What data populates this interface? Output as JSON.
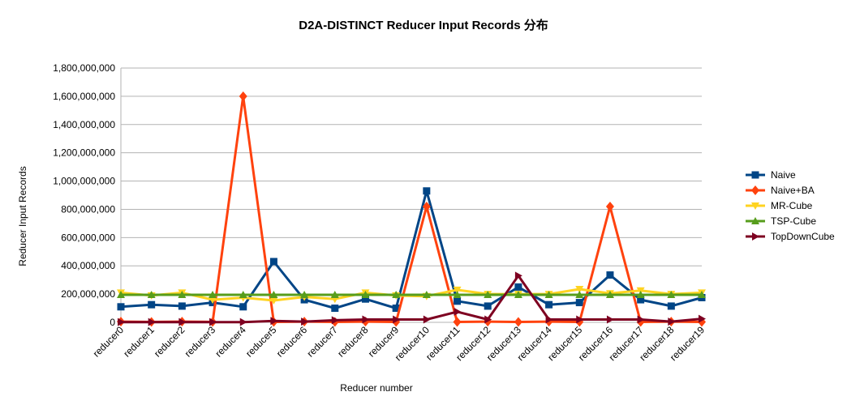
{
  "chart_data": {
    "type": "line",
    "title": "D2A-DISTINCT Reducer Input Records  分布",
    "xlabel": "Reducer number",
    "ylabel": "Reducer Input Records",
    "ylim": [
      0,
      1800000000
    ],
    "yticks": [
      0,
      200000000,
      400000000,
      600000000,
      800000000,
      1000000000,
      1200000000,
      1400000000,
      1600000000,
      1800000000
    ],
    "ytick_labels": [
      "0",
      "200,000,000",
      "400,000,000",
      "600,000,000",
      "800,000,000",
      "1,000,000,000",
      "1,200,000,000",
      "1,400,000,000",
      "1,600,000,000",
      "1,800,000,000"
    ],
    "grid": "horizontal",
    "legend_position": "right",
    "categories": [
      "reducer0",
      "reducer1",
      "reducer2",
      "reducer3",
      "reducer4",
      "reducer5",
      "reducer6",
      "reducer7",
      "reducer8",
      "reducer9",
      "reducer10",
      "reducer11",
      "reducer12",
      "reducer13",
      "reducer14",
      "reducer15",
      "reducer16",
      "reducer17",
      "reducer18",
      "reducer19"
    ],
    "series": [
      {
        "name": "Naive",
        "color": "#004586",
        "marker": "square",
        "values": [
          110000000,
          125000000,
          115000000,
          140000000,
          110000000,
          430000000,
          160000000,
          100000000,
          165000000,
          100000000,
          930000000,
          150000000,
          115000000,
          250000000,
          125000000,
          140000000,
          335000000,
          160000000,
          115000000,
          175000000
        ]
      },
      {
        "name": "Naive+BA",
        "color": "#ff420e",
        "marker": "diamond",
        "values": [
          5000000,
          3000000,
          5000000,
          3000000,
          1600000000,
          3000000,
          5000000,
          3000000,
          5000000,
          3000000,
          820000000,
          3000000,
          5000000,
          3000000,
          5000000,
          3000000,
          820000000,
          3000000,
          5000000,
          3000000
        ]
      },
      {
        "name": "MR-Cube",
        "color": "#ffd320",
        "marker": "triangle-down",
        "values": [
          210000000,
          190000000,
          210000000,
          160000000,
          175000000,
          155000000,
          180000000,
          165000000,
          210000000,
          190000000,
          185000000,
          230000000,
          200000000,
          200000000,
          200000000,
          235000000,
          205000000,
          225000000,
          200000000,
          210000000
        ]
      },
      {
        "name": "TSP-Cube",
        "color": "#579d1c",
        "marker": "triangle-up",
        "values": [
          195000000,
          195000000,
          195000000,
          195000000,
          195000000,
          195000000,
          195000000,
          195000000,
          195000000,
          195000000,
          195000000,
          195000000,
          195000000,
          195000000,
          195000000,
          195000000,
          195000000,
          195000000,
          195000000,
          195000000
        ]
      },
      {
        "name": "TopDownCube",
        "color": "#7e0021",
        "marker": "triangle-right",
        "values": [
          2000000,
          2000000,
          2000000,
          2000000,
          2000000,
          10000000,
          5000000,
          15000000,
          20000000,
          20000000,
          20000000,
          75000000,
          20000000,
          330000000,
          20000000,
          20000000,
          20000000,
          20000000,
          5000000,
          25000000
        ]
      }
    ]
  }
}
